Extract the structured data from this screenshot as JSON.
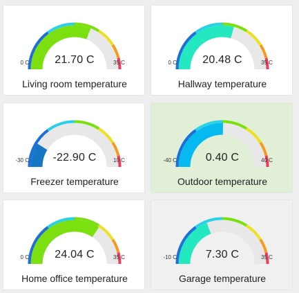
{
  "unit": "C",
  "colors": {
    "track": "#e8e8e8",
    "highlight_card": "#e0efd5",
    "normal_card": "#ffffff",
    "selected_card": "#f0f0f0"
  },
  "segments": [
    {
      "from": 0.0,
      "to": 0.3,
      "color": "#1e6fd9"
    },
    {
      "from": 0.3,
      "to": 0.5,
      "color": "#2bd0e6"
    },
    {
      "from": 0.5,
      "to": 0.68,
      "color": "#7ce010"
    },
    {
      "from": 0.68,
      "to": 0.82,
      "color": "#ece020"
    },
    {
      "from": 0.82,
      "to": 0.92,
      "color": "#f59a1f"
    },
    {
      "from": 0.92,
      "to": 1.0,
      "color": "#f03c5a"
    }
  ],
  "gauges": [
    {
      "title": "Living room temperature",
      "value_text": "21.70 C",
      "value": 21.7,
      "min": 0,
      "max": 35,
      "min_label": "0 C",
      "max_label": "35 C",
      "fill_color": "#7ce010",
      "state": "normal"
    },
    {
      "title": "Hallway temperature",
      "value_text": "20.48 C",
      "value": 20.48,
      "min": 0,
      "max": 35,
      "min_label": "0 C",
      "max_label": "35 C",
      "fill_color": "#23e8c0",
      "state": "normal"
    },
    {
      "title": "Freezer temperature",
      "value_text": "-22.90 C",
      "value": -22.9,
      "min": -30,
      "max": 10,
      "min_label": "-30 C",
      "max_label": "10 C",
      "fill_color": "#1677c4",
      "state": "normal"
    },
    {
      "title": "Outdoor temperature",
      "value_text": "0.40 C",
      "value": 0.4,
      "min": -40,
      "max": 40,
      "min_label": "-40 C",
      "max_label": "40 C",
      "fill_color": "#06baf0",
      "state": "highlight"
    },
    {
      "title": "Home office temperature",
      "value_text": "24.04 C",
      "value": 24.04,
      "min": 0,
      "max": 35,
      "min_label": "0 C",
      "max_label": "35 C",
      "fill_color": "#7ce010",
      "state": "normal"
    },
    {
      "title": "Garage temperature",
      "value_text": "7.30 C",
      "value": 7.3,
      "min": -10,
      "max": 35,
      "min_label": "-10 C",
      "max_label": "35 C",
      "fill_color": "#23e8c0",
      "state": "selected"
    }
  ]
}
